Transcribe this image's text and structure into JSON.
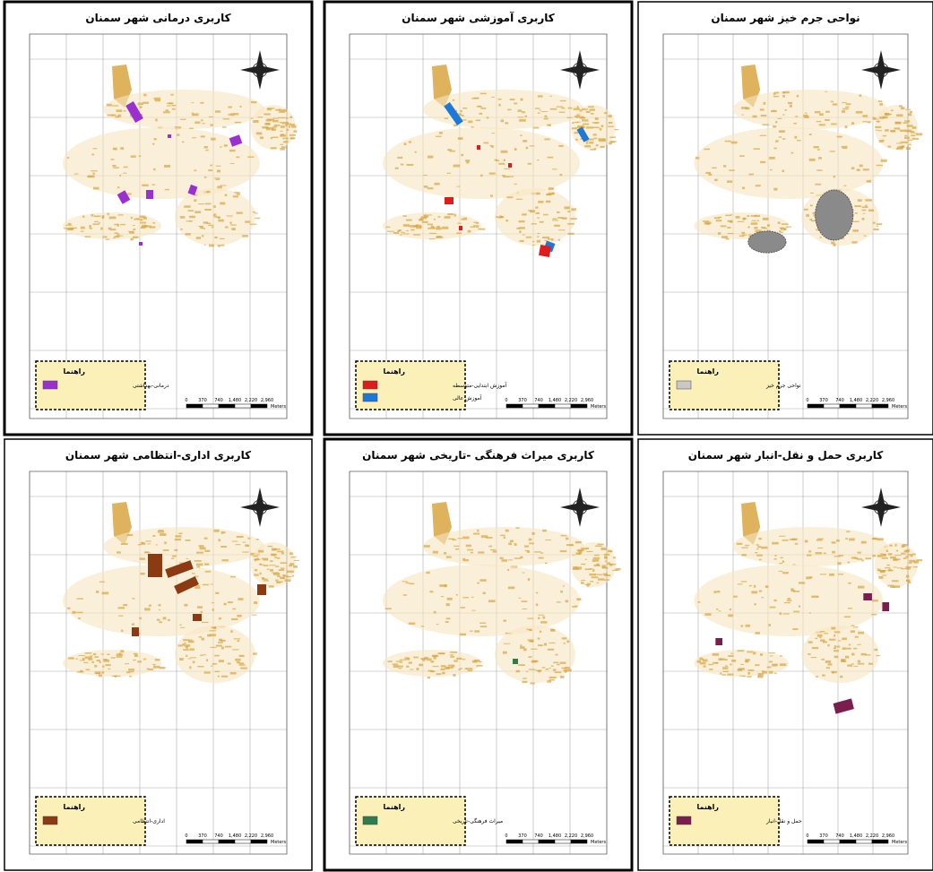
{
  "panels": [
    {
      "title": "کاربری درمانی شهر سمنان",
      "legend_title": "راهنما",
      "legend_items": [
        {
          "label": "درمانی-بهداشتی",
          "color": "#9b30d0"
        }
      ]
    },
    {
      "title": "کاربری آموزشی شهر سمنان",
      "legend_title": "راهنما",
      "legend_items": [
        {
          "label": "آموزش ابتدایی-متوسطه",
          "color": "#e01b1b"
        },
        {
          "label": "آموزش عالی",
          "color": "#1e78d8"
        }
      ]
    },
    {
      "title": "نواحی جرم خیز شهر سمنان",
      "legend_title": "راهنما",
      "legend_items": [
        {
          "label": "نواحی جرم خیز",
          "color": "#c8c8c8"
        }
      ]
    },
    {
      "title": "کاربری اداری-انتظامی شهر سمنان",
      "legend_title": "راهنما",
      "legend_items": [
        {
          "label": "اداری-انتظامی",
          "color": "#8b3a12"
        }
      ]
    },
    {
      "title": "کاربری میراث فرهنگی -تاریخی شهر سمنان",
      "legend_title": "راهنما",
      "legend_items": [
        {
          "label": "میراث فرهنگی-تاریخی",
          "color": "#2e7d4f"
        }
      ]
    },
    {
      "title": "کاربری حمل و نقل-انبار شهر سمنان",
      "legend_title": "راهنما",
      "legend_items": [
        {
          "label": "حمل و نقل-انبار",
          "color": "#7a1e4e"
        }
      ]
    }
  ],
  "scale_bar": {
    "labels": [
      "0",
      "370",
      "740",
      "1,480",
      "2,220",
      "2,960"
    ],
    "unit": "Meters"
  }
}
